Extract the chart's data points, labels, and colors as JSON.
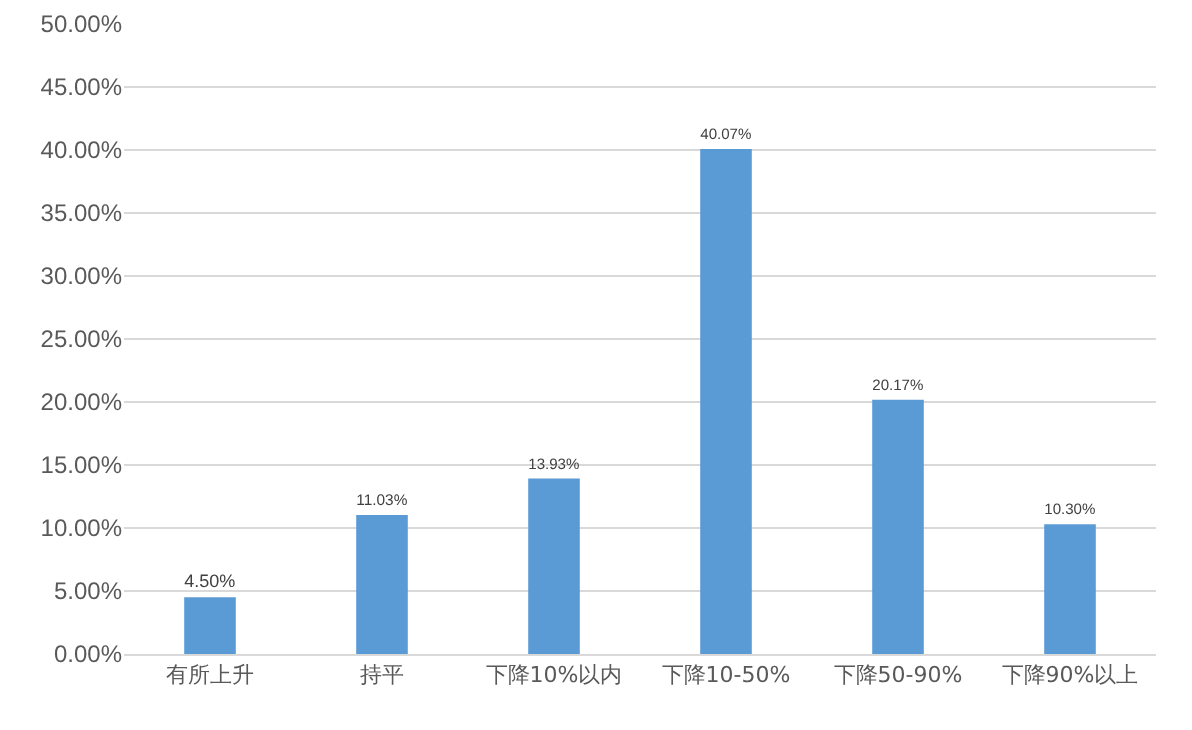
{
  "chart_data": {
    "type": "bar",
    "categories": [
      "有所上升",
      "持平",
      "下降10%以内",
      "下降10-50%",
      "下降50-90%",
      "下降90%以上"
    ],
    "values": [
      4.5,
      11.03,
      13.93,
      40.07,
      20.17,
      10.3
    ],
    "value_labels": [
      "4.50%",
      "11.03%",
      "13.93%",
      "40.07%",
      "20.17%",
      "10.30%"
    ],
    "color": "#5b9bd5",
    "ylim": [
      0,
      50
    ],
    "yticks": [
      {
        "value": 0,
        "label": "0.00%"
      },
      {
        "value": 5,
        "label": "5.00%"
      },
      {
        "value": 10,
        "label": "10.00%"
      },
      {
        "value": 15,
        "label": "15.00%"
      },
      {
        "value": 20,
        "label": "20.00%"
      },
      {
        "value": 25,
        "label": "25.00%"
      },
      {
        "value": 30,
        "label": "30.00%"
      },
      {
        "value": 35,
        "label": "35.00%"
      },
      {
        "value": 40,
        "label": "40.00%"
      },
      {
        "value": 45,
        "label": "45.00%"
      },
      {
        "value": 50,
        "label": "50.00%"
      }
    ],
    "grid": "y"
  }
}
